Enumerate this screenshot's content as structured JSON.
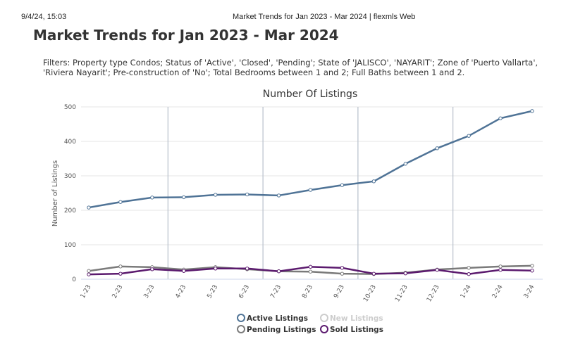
{
  "header": {
    "timestamp": "9/4/24, 15:03",
    "page_title": "Market Trends for Jan 2023 - Mar 2024 | flexmls Web"
  },
  "title": "Market Trends for Jan 2023 - Mar 2024",
  "filters": [
    "Filters: Property type Condos; Status of 'Active', 'Closed', 'Pending'; State of 'JALISCO', 'NAYARIT'; Zone of 'Puerto Vallarta',",
    "'Riviera Nayarit'; Pre-construction of 'No'; Total Bedrooms between 1 and 2; Full Baths between 1 and 2."
  ],
  "chart_data": {
    "type": "line",
    "title": "Number Of Listings",
    "y_label": "Number of Listings",
    "categories": [
      "1-23",
      "2-23",
      "3-23",
      "4-23",
      "5-23",
      "6-23",
      "7-23",
      "8-23",
      "9-23",
      "10-23",
      "11-23",
      "12-23",
      "1-24",
      "2-24",
      "3-24"
    ],
    "ylim": [
      0,
      500
    ],
    "yticks": [
      0,
      100,
      200,
      300,
      400,
      500
    ],
    "grid": true,
    "series": [
      {
        "name": "Active Listings",
        "color": "#4f7396",
        "values": [
          208,
          224,
          237,
          238,
          245,
          246,
          243,
          259,
          273,
          284,
          335,
          380,
          416,
          467,
          488
        ]
      },
      {
        "name": "New Listings",
        "color": "#cccccc",
        "hidden": true
      },
      {
        "name": "Pending Listings",
        "color": "#7a7a7a",
        "values": [
          24,
          37,
          35,
          28,
          35,
          29,
          23,
          22,
          16,
          15,
          19,
          28,
          33,
          37,
          39
        ]
      },
      {
        "name": "Sold Listings",
        "color": "#5b1a6e",
        "values": [
          14,
          16,
          29,
          24,
          31,
          31,
          23,
          36,
          33,
          16,
          17,
          27,
          15,
          27,
          25
        ]
      }
    ]
  }
}
